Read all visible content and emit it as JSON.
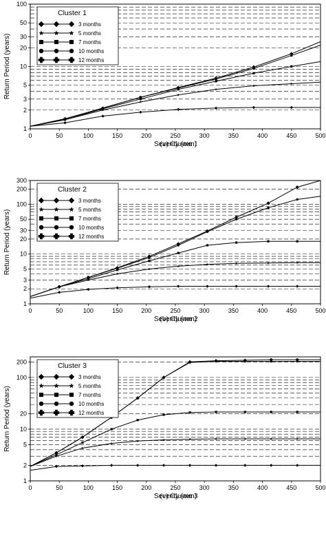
{
  "chart_data": [
    {
      "type": "line",
      "title": "Cluster 1",
      "caption": "(a) Cluster 1",
      "xlabel": "Severity (mm)",
      "ylabel": "Return Period (years)",
      "xlim": [
        0,
        500
      ],
      "ylim": [
        1,
        100
      ],
      "yscale": "log",
      "xticks": [
        0,
        50,
        100,
        150,
        200,
        250,
        300,
        350,
        400,
        450,
        500
      ],
      "yticks": [
        1,
        2,
        3,
        5,
        10,
        20,
        30,
        50,
        100
      ],
      "grid_y": [
        2,
        3,
        4,
        5,
        6,
        7,
        8,
        9,
        10,
        20,
        30,
        40,
        50,
        60,
        70,
        80,
        90,
        100
      ],
      "legend": "top-left",
      "series": [
        {
          "name": "3 months",
          "marker": "diamond",
          "x": [
            0,
            60,
            125,
            190,
            255,
            320,
            385,
            450,
            500
          ],
          "values": [
            1.1,
            1.25,
            1.6,
            1.85,
            2.05,
            2.15,
            2.2,
            2.2,
            2.2
          ]
        },
        {
          "name": "5 months",
          "marker": "star",
          "x": [
            0,
            60,
            125,
            190,
            255,
            320,
            385,
            450,
            500
          ],
          "values": [
            1.1,
            1.4,
            2.0,
            2.7,
            3.5,
            4.3,
            4.9,
            5.3,
            5.6
          ]
        },
        {
          "name": "7 months",
          "marker": "square",
          "x": [
            0,
            60,
            125,
            190,
            255,
            320,
            385,
            450,
            500
          ],
          "values": [
            1.1,
            1.4,
            2.1,
            3.0,
            4.3,
            5.8,
            7.8,
            10.0,
            12.0
          ]
        },
        {
          "name": "10 months",
          "marker": "circle",
          "x": [
            0,
            60,
            125,
            190,
            255,
            320,
            385,
            450,
            500
          ],
          "values": [
            1.1,
            1.45,
            2.15,
            3.2,
            4.5,
            6.3,
            9.3,
            15.0,
            22.0
          ]
        },
        {
          "name": "12 months",
          "marker": "cross",
          "x": [
            0,
            60,
            125,
            190,
            255,
            320,
            385,
            450,
            500
          ],
          "values": [
            1.1,
            1.45,
            2.15,
            3.2,
            4.6,
            6.5,
            9.8,
            16.0,
            25.0
          ]
        }
      ]
    },
    {
      "type": "line",
      "title": "Cluster 2",
      "caption": "(b) Cluster 2",
      "xlabel": "Severity (mm)",
      "ylabel": "Return Period (years)",
      "xlim": [
        0,
        500
      ],
      "ylim": [
        1,
        300
      ],
      "yscale": "log",
      "xticks": [
        0,
        50,
        100,
        150,
        200,
        250,
        300,
        350,
        400,
        450,
        500
      ],
      "yticks": [
        1,
        2,
        3,
        5,
        10,
        20,
        30,
        50,
        100,
        200,
        300
      ],
      "grid_y": [
        2,
        3,
        4,
        5,
        6,
        7,
        8,
        9,
        10,
        20,
        30,
        40,
        50,
        60,
        70,
        80,
        90,
        100,
        200,
        300
      ],
      "legend": "top-left",
      "series": [
        {
          "name": "3 months",
          "marker": "diamond",
          "x": [
            0,
            50,
            100,
            150,
            205,
            255,
            305,
            355,
            410,
            460,
            500
          ],
          "values": [
            1.3,
            1.7,
            1.95,
            2.1,
            2.2,
            2.25,
            2.25,
            2.25,
            2.25,
            2.25,
            2.25
          ]
        },
        {
          "name": "5 months",
          "marker": "star",
          "x": [
            0,
            50,
            100,
            150,
            205,
            255,
            305,
            355,
            410,
            460,
            500
          ],
          "values": [
            1.4,
            2.2,
            3.0,
            4.0,
            5.0,
            5.7,
            6.2,
            6.5,
            6.6,
            6.7,
            6.7
          ]
        },
        {
          "name": "7 months",
          "marker": "square",
          "x": [
            0,
            50,
            100,
            150,
            205,
            255,
            305,
            355,
            410,
            460,
            500
          ],
          "values": [
            1.4,
            2.2,
            3.2,
            4.8,
            7.3,
            10.5,
            15.0,
            17.0,
            18.0,
            18.0,
            18.0
          ]
        },
        {
          "name": "10 months",
          "marker": "circle",
          "x": [
            0,
            50,
            100,
            150,
            205,
            255,
            305,
            355,
            410,
            460,
            500
          ],
          "values": [
            1.4,
            2.2,
            3.4,
            5.2,
            8.5,
            15.0,
            28.0,
            50.0,
            85.0,
            125.0,
            145.0
          ]
        },
        {
          "name": "12 months",
          "marker": "cross",
          "x": [
            0,
            50,
            100,
            150,
            205,
            255,
            305,
            355,
            410,
            460,
            500
          ],
          "values": [
            1.4,
            2.2,
            3.4,
            5.3,
            9.0,
            16.0,
            29.0,
            55.0,
            105.0,
            220.0,
            300.0
          ]
        }
      ]
    },
    {
      "type": "line",
      "title": "Cluster 3",
      "caption": "(c) Cluster 3",
      "xlabel": "Severity (mm)",
      "ylabel": "Return Period (years)",
      "xlim": [
        0,
        500
      ],
      "ylim": [
        1,
        250
      ],
      "yscale": "log",
      "xticks": [
        0,
        50,
        100,
        150,
        200,
        250,
        300,
        350,
        400,
        450,
        500
      ],
      "yticks": [
        1,
        2,
        5,
        10,
        20,
        100,
        200
      ],
      "grid_y": [
        2,
        3,
        4,
        5,
        6,
        7,
        8,
        9,
        10,
        20,
        30,
        40,
        50,
        60,
        70,
        80,
        90,
        100,
        200
      ],
      "legend": "top-left",
      "series": [
        {
          "name": "3 months",
          "marker": "diamond",
          "x": [
            0,
            45,
            90,
            140,
            185,
            230,
            275,
            320,
            370,
            415,
            460,
            500
          ],
          "values": [
            1.6,
            1.9,
            1.95,
            2.0,
            2.0,
            2.0,
            2.0,
            2.0,
            2.0,
            2.0,
            2.0,
            2.0
          ]
        },
        {
          "name": "5 months",
          "marker": "star",
          "x": [
            0,
            45,
            90,
            140,
            185,
            230,
            275,
            320,
            370,
            415,
            460,
            500
          ],
          "values": [
            1.9,
            3.0,
            4.3,
            5.3,
            5.9,
            6.2,
            6.4,
            6.5,
            6.5,
            6.5,
            6.5,
            6.5
          ]
        },
        {
          "name": "7 months",
          "marker": "square",
          "x": [
            0,
            45,
            90,
            140,
            185,
            230,
            275,
            320,
            370,
            415,
            460,
            500
          ],
          "values": [
            1.9,
            3.2,
            5.5,
            10.0,
            15.0,
            19.0,
            21.0,
            21.5,
            21.5,
            21.5,
            21.5,
            21.5
          ]
        },
        {
          "name": "10 months",
          "marker": "circle",
          "x": [
            0,
            45,
            90,
            140,
            185,
            230,
            275,
            320,
            370,
            415,
            460,
            500
          ],
          "values": [
            1.9,
            3.5,
            7.0,
            17.0,
            40.0,
            100.0,
            195.0,
            205.0,
            205.0,
            205.0,
            205.0,
            205.0
          ]
        },
        {
          "name": "12 months",
          "marker": "cross",
          "x": [
            0,
            45,
            90,
            140,
            185,
            230,
            275,
            320,
            370,
            415,
            460,
            500
          ],
          "values": [
            1.9,
            3.5,
            7.0,
            17.0,
            40.0,
            100.0,
            200.0,
            210.0,
            215.0,
            220.0,
            220.0,
            220.0
          ]
        }
      ]
    }
  ]
}
